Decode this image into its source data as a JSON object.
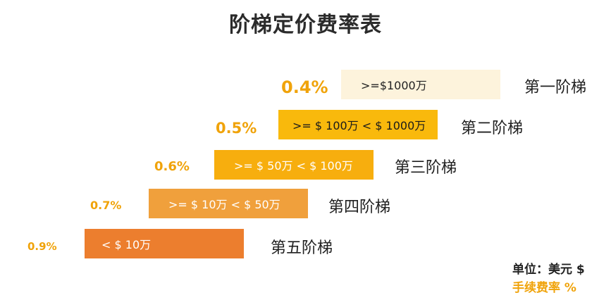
{
  "title": "阶梯定价费率表",
  "tiers": [
    {
      "name": "第一阶梯",
      "range": ">=$1000万",
      "rate": "0.4%"
    },
    {
      "name": "第二阶梯",
      "range": ">= $ 100万 < $ 1000万",
      "rate": "0.5%"
    },
    {
      "name": "第三阶梯",
      "range": ">= $ 50万 < $ 100万",
      "rate": "0.6%"
    },
    {
      "name": "第四阶梯",
      "range": ">= $ 10万 < $ 50万",
      "rate": "0.7%"
    },
    {
      "name": "第五阶梯",
      "range": "< $ 10万",
      "rate": "0.9%"
    }
  ],
  "legend": {
    "unit": "单位：美元 $",
    "rate": "手续费率 %"
  },
  "colors": {
    "tier1_bar": "#fdf3dc",
    "tier2_bar": "#f9b90c",
    "tier3_bar": "#f7ae0e",
    "tier4_bar": "#f0a03c",
    "tier5_bar": "#ec7e2e",
    "rate_text": "#f0a30a"
  }
}
